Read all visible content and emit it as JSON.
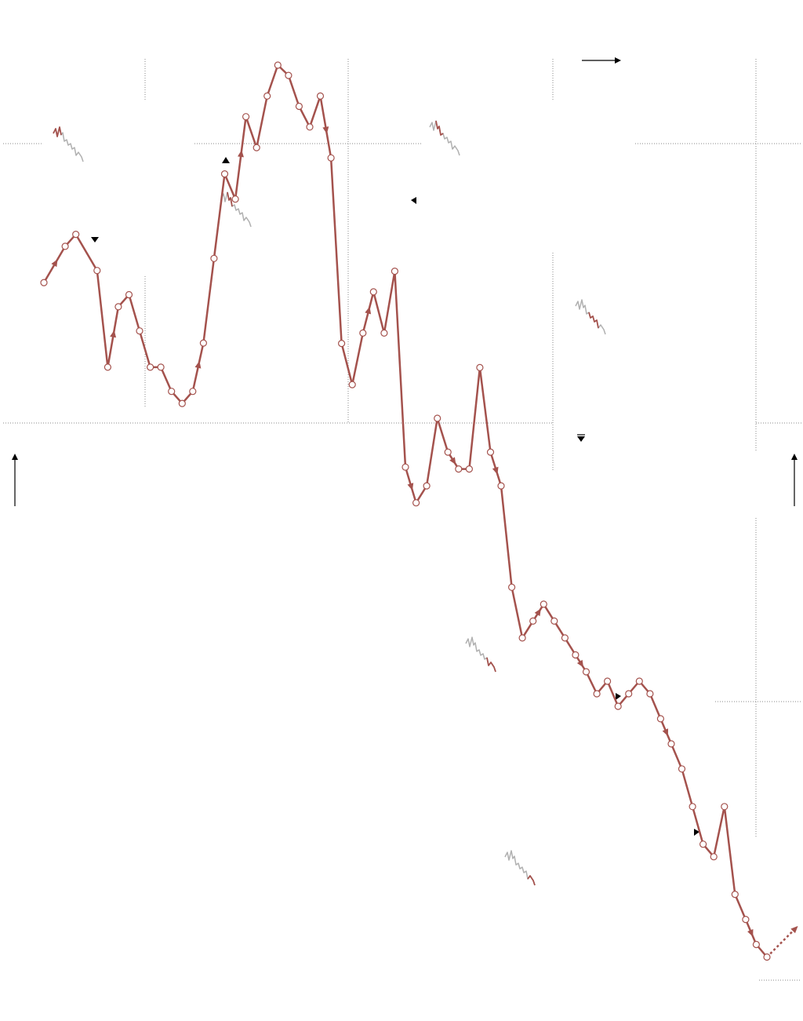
{
  "chart_data": {
    "type": "line",
    "title": "",
    "xlabel": "",
    "ylabel": "",
    "grid": true,
    "legend": "none",
    "colors": {
      "line": "#a4524d",
      "point_fill": "#ffffff",
      "grid": "#888888",
      "sparkline": "#b0b0b0"
    },
    "series": [
      {
        "name": "",
        "x": [
          0,
          2,
          3,
          5,
          6,
          7,
          8,
          9,
          10,
          11,
          12,
          13,
          14,
          15,
          16,
          17,
          18,
          19,
          20,
          21,
          22,
          23,
          24,
          25,
          26,
          27,
          28,
          29,
          30,
          31,
          32,
          33,
          34,
          35,
          36,
          37,
          38,
          39,
          40,
          41,
          42,
          43,
          44,
          45,
          46,
          47,
          48,
          49,
          50,
          51,
          52,
          53,
          54,
          55,
          56,
          57,
          58,
          59,
          60,
          61,
          62,
          63,
          64,
          65,
          66,
          67,
          68
        ],
        "y": [
          57,
          60,
          61,
          58,
          50,
          55,
          56,
          53,
          50,
          50,
          48,
          47,
          48,
          52,
          59,
          66,
          67,
          75,
          72,
          77,
          80,
          79,
          76,
          74,
          77,
          71,
          53,
          49,
          54,
          58,
          54,
          60,
          41,
          35,
          36,
          40,
          38,
          37,
          37,
          43,
          38,
          36,
          30,
          27,
          28,
          29,
          28,
          27,
          26,
          25,
          24,
          25,
          23,
          24,
          25,
          24,
          22,
          20,
          18,
          15,
          12,
          11,
          15,
          8,
          6,
          4,
          3
        ],
        "markers": true
      }
    ],
    "trend_arrow": true
  }
}
